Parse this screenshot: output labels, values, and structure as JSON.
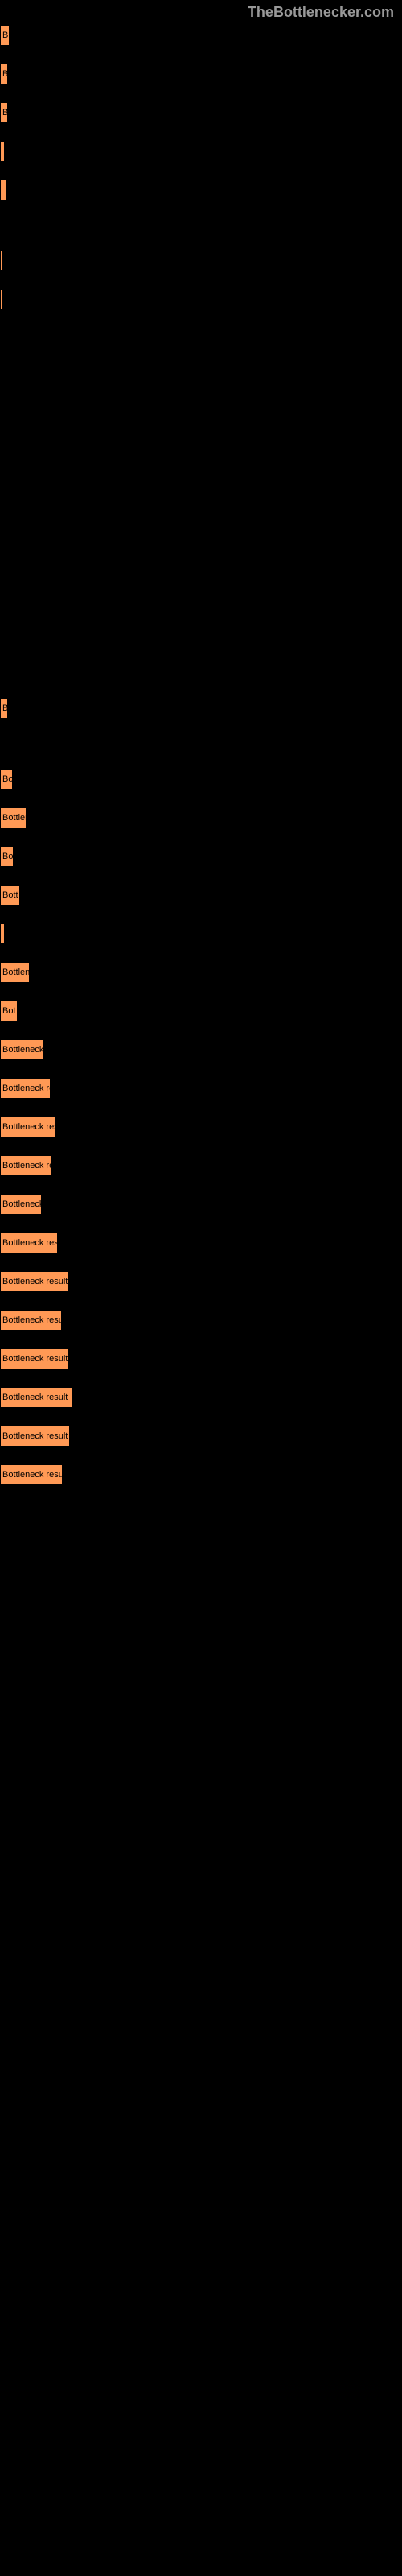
{
  "header": "TheBottlenecker.com",
  "bar_color": "#ff9955",
  "background_color": "#000000",
  "bars": [
    {
      "label": "B",
      "width": 12,
      "gap_after": 20
    },
    {
      "label": "B",
      "width": 10,
      "gap_after": 20
    },
    {
      "label": "B",
      "width": 10,
      "gap_after": 20
    },
    {
      "label": "",
      "width": 6,
      "gap_after": 20
    },
    {
      "label": "",
      "width": 8,
      "gap_after": 60
    },
    {
      "label": "",
      "width": 3,
      "gap_after": 20
    },
    {
      "label": "",
      "width": 3,
      "gap_after": 480
    },
    {
      "label": "B",
      "width": 10,
      "gap_after": 60
    },
    {
      "label": "Bo",
      "width": 16,
      "gap_after": 20
    },
    {
      "label": "Bottlen",
      "width": 33,
      "gap_after": 20
    },
    {
      "label": "Bo",
      "width": 17,
      "gap_after": 20
    },
    {
      "label": "Bott",
      "width": 25,
      "gap_after": 20
    },
    {
      "label": "",
      "width": 6,
      "gap_after": 20
    },
    {
      "label": "Bottlen",
      "width": 37,
      "gap_after": 20
    },
    {
      "label": "Bot",
      "width": 22,
      "gap_after": 20
    },
    {
      "label": "Bottleneck",
      "width": 55,
      "gap_after": 20
    },
    {
      "label": "Bottleneck re",
      "width": 63,
      "gap_after": 20
    },
    {
      "label": "Bottleneck res",
      "width": 70,
      "gap_after": 20
    },
    {
      "label": "Bottleneck re",
      "width": 65,
      "gap_after": 20
    },
    {
      "label": "Bottleneck",
      "width": 52,
      "gap_after": 20
    },
    {
      "label": "Bottleneck res",
      "width": 72,
      "gap_after": 20
    },
    {
      "label": "Bottleneck result",
      "width": 85,
      "gap_after": 20
    },
    {
      "label": "Bottleneck resu",
      "width": 77,
      "gap_after": 20
    },
    {
      "label": "Bottleneck result",
      "width": 85,
      "gap_after": 20
    },
    {
      "label": "Bottleneck result",
      "width": 90,
      "gap_after": 20
    },
    {
      "label": "Bottleneck result",
      "width": 87,
      "gap_after": 20
    },
    {
      "label": "Bottleneck resu",
      "width": 78,
      "gap_after": 20
    }
  ]
}
